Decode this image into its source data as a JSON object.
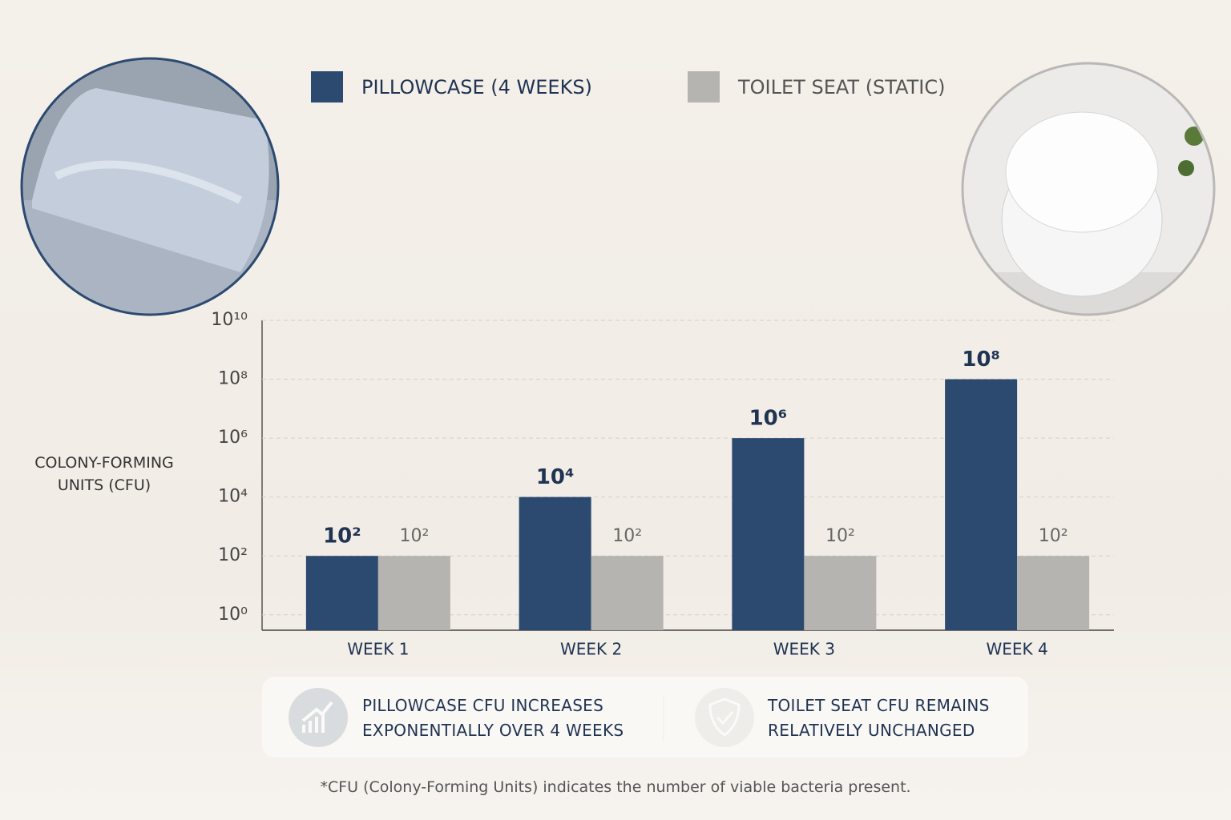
{
  "chart_data": {
    "type": "bar",
    "log_scale": true,
    "grid": true,
    "legend": "top",
    "y_label": "COLONY-FORMING UNITS (CFU)",
    "categories": [
      "WEEK 1",
      "WEEK 2",
      "WEEK 3",
      "WEEK 4"
    ],
    "series": [
      {
        "name": "PILLOWCASE (4 WEEKS)",
        "color": "#2c4a70",
        "values": [
          100,
          10000,
          1000000,
          100000000
        ],
        "value_labels": [
          "10²",
          "10⁴",
          "10⁶",
          "10⁸"
        ]
      },
      {
        "name": "TOILET SEAT (STATIC)",
        "color": "#b5b4b0",
        "values": [
          100,
          100,
          100,
          100
        ],
        "value_labels": [
          "10²",
          "10²",
          "10²",
          "10²"
        ]
      }
    ],
    "ylim": [
      0.3,
      10000000000
    ],
    "yticks": [
      {
        "value": 1,
        "label": "10⁰"
      },
      {
        "value": 100,
        "label": "10²"
      },
      {
        "value": 10000,
        "label": "10⁴"
      },
      {
        "value": 1000000,
        "label": "10⁶"
      },
      {
        "value": 100000000,
        "label": "10⁸"
      },
      {
        "value": 10000000000,
        "label": "10¹⁰"
      }
    ],
    "callouts": [
      "PILLOWCASE CFU INCREASES EXPONENTIALLY OVER 4 WEEKS",
      "TOILET SEAT CFU REMAINS RELATIVELY UNCHANGED"
    ],
    "footnote": "*CFU (Colony-Forming Units) indicates the number of viable bacteria present."
  }
}
